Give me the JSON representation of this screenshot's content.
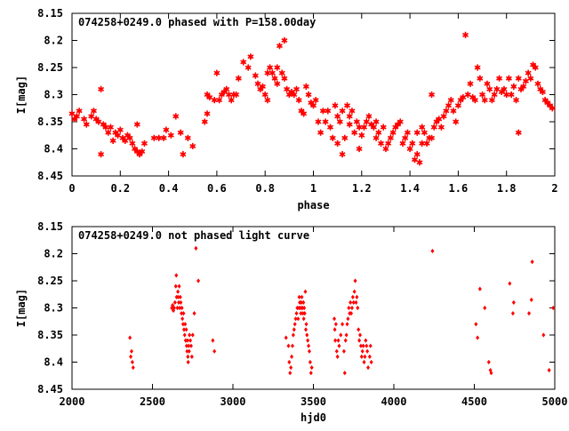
{
  "chart_data": [
    {
      "type": "scatter",
      "title": "074258+0249.0 phased with P=158.00day",
      "xlabel": "phase",
      "ylabel": "I[mag]",
      "xlim": [
        0,
        2
      ],
      "ylim": [
        8.45,
        8.15
      ],
      "y_inverted": true,
      "xticks": [
        "0",
        "0.2",
        "0.4",
        "0.6",
        "0.8",
        "1",
        "1.2",
        "1.4",
        "1.6",
        "1.8",
        "2"
      ],
      "yticks": [
        "8.15",
        "8.2",
        "8.25",
        "8.3",
        "8.35",
        "8.4",
        "8.45"
      ],
      "grid": false,
      "marker": "star",
      "color": "#ff0000",
      "points": [
        [
          0.0,
          8.335
        ],
        [
          0.01,
          8.345
        ],
        [
          0.02,
          8.34
        ],
        [
          0.03,
          8.33
        ],
        [
          0.05,
          8.345
        ],
        [
          0.06,
          8.355
        ],
        [
          0.08,
          8.34
        ],
        [
          0.09,
          8.33
        ],
        [
          0.1,
          8.345
        ],
        [
          0.11,
          8.35
        ],
        [
          0.12,
          8.29
        ],
        [
          0.13,
          8.355
        ],
        [
          0.12,
          8.41
        ],
        [
          0.14,
          8.36
        ],
        [
          0.15,
          8.37
        ],
        [
          0.16,
          8.36
        ],
        [
          0.17,
          8.385
        ],
        [
          0.18,
          8.37
        ],
        [
          0.19,
          8.375
        ],
        [
          0.2,
          8.365
        ],
        [
          0.21,
          8.38
        ],
        [
          0.22,
          8.385
        ],
        [
          0.23,
          8.375
        ],
        [
          0.24,
          8.38
        ],
        [
          0.25,
          8.39
        ],
        [
          0.26,
          8.4
        ],
        [
          0.27,
          8.405
        ],
        [
          0.27,
          8.355
        ],
        [
          0.28,
          8.41
        ],
        [
          0.29,
          8.405
        ],
        [
          0.3,
          8.39
        ],
        [
          0.34,
          8.38
        ],
        [
          0.36,
          8.38
        ],
        [
          0.38,
          8.38
        ],
        [
          0.39,
          8.365
        ],
        [
          0.41,
          8.375
        ],
        [
          0.43,
          8.34
        ],
        [
          0.45,
          8.37
        ],
        [
          0.46,
          8.41
        ],
        [
          0.48,
          8.38
        ],
        [
          0.5,
          8.395
        ],
        [
          0.55,
          8.35
        ],
        [
          0.56,
          8.335
        ],
        [
          0.56,
          8.3
        ],
        [
          0.57,
          8.305
        ],
        [
          0.59,
          8.31
        ],
        [
          0.6,
          8.26
        ],
        [
          0.61,
          8.31
        ],
        [
          0.62,
          8.3
        ],
        [
          0.63,
          8.295
        ],
        [
          0.64,
          8.29
        ],
        [
          0.65,
          8.3
        ],
        [
          0.66,
          8.31
        ],
        [
          0.67,
          8.3
        ],
        [
          0.68,
          8.3
        ],
        [
          0.69,
          8.27
        ],
        [
          0.71,
          8.24
        ],
        [
          0.73,
          8.25
        ],
        [
          0.74,
          8.23
        ],
        [
          0.76,
          8.265
        ],
        [
          0.77,
          8.28
        ],
        [
          0.78,
          8.29
        ],
        [
          0.79,
          8.285
        ],
        [
          0.8,
          8.3
        ],
        [
          0.81,
          8.31
        ],
        [
          0.81,
          8.26
        ],
        [
          0.82,
          8.25
        ],
        [
          0.83,
          8.26
        ],
        [
          0.84,
          8.27
        ],
        [
          0.85,
          8.28
        ],
        [
          0.85,
          8.25
        ],
        [
          0.86,
          8.21
        ],
        [
          0.87,
          8.26
        ],
        [
          0.88,
          8.27
        ],
        [
          0.88,
          8.2
        ],
        [
          0.89,
          8.29
        ],
        [
          0.9,
          8.3
        ],
        [
          0.91,
          8.295
        ],
        [
          0.92,
          8.3
        ],
        [
          0.93,
          8.29
        ],
        [
          0.94,
          8.31
        ],
        [
          0.95,
          8.33
        ],
        [
          0.96,
          8.335
        ],
        [
          0.97,
          8.285
        ],
        [
          0.98,
          8.3
        ],
        [
          0.99,
          8.315
        ],
        [
          1.0,
          8.32
        ],
        [
          1.01,
          8.31
        ],
        [
          1.02,
          8.35
        ],
        [
          1.03,
          8.37
        ],
        [
          1.04,
          8.33
        ],
        [
          1.05,
          8.35
        ],
        [
          1.06,
          8.33
        ],
        [
          1.07,
          8.36
        ],
        [
          1.08,
          8.38
        ],
        [
          1.09,
          8.32
        ],
        [
          1.1,
          8.34
        ],
        [
          1.1,
          8.39
        ],
        [
          1.11,
          8.35
        ],
        [
          1.12,
          8.33
        ],
        [
          1.12,
          8.41
        ],
        [
          1.13,
          8.38
        ],
        [
          1.14,
          8.32
        ],
        [
          1.15,
          8.355
        ],
        [
          1.15,
          8.34
        ],
        [
          1.16,
          8.33
        ],
        [
          1.17,
          8.37
        ],
        [
          1.18,
          8.35
        ],
        [
          1.19,
          8.36
        ],
        [
          1.19,
          8.4
        ],
        [
          1.2,
          8.375
        ],
        [
          1.21,
          8.36
        ],
        [
          1.22,
          8.35
        ],
        [
          1.23,
          8.34
        ],
        [
          1.24,
          8.355
        ],
        [
          1.25,
          8.36
        ],
        [
          1.26,
          8.38
        ],
        [
          1.26,
          8.35
        ],
        [
          1.27,
          8.37
        ],
        [
          1.28,
          8.39
        ],
        [
          1.29,
          8.36
        ],
        [
          1.3,
          8.4
        ],
        [
          1.31,
          8.39
        ],
        [
          1.32,
          8.38
        ],
        [
          1.33,
          8.37
        ],
        [
          1.34,
          8.36
        ],
        [
          1.35,
          8.355
        ],
        [
          1.36,
          8.35
        ],
        [
          1.37,
          8.39
        ],
        [
          1.38,
          8.38
        ],
        [
          1.39,
          8.37
        ],
        [
          1.4,
          8.4
        ],
        [
          1.41,
          8.39
        ],
        [
          1.42,
          8.42
        ],
        [
          1.43,
          8.37
        ],
        [
          1.43,
          8.41
        ],
        [
          1.44,
          8.425
        ],
        [
          1.45,
          8.36
        ],
        [
          1.45,
          8.39
        ],
        [
          1.46,
          8.37
        ],
        [
          1.47,
          8.39
        ],
        [
          1.48,
          8.38
        ],
        [
          1.49,
          8.38
        ],
        [
          1.49,
          8.3
        ],
        [
          1.5,
          8.36
        ],
        [
          1.51,
          8.35
        ],
        [
          1.52,
          8.345
        ],
        [
          1.53,
          8.36
        ],
        [
          1.54,
          8.34
        ],
        [
          1.55,
          8.33
        ],
        [
          1.56,
          8.32
        ],
        [
          1.57,
          8.31
        ],
        [
          1.58,
          8.33
        ],
        [
          1.59,
          8.35
        ],
        [
          1.6,
          8.32
        ],
        [
          1.61,
          8.31
        ],
        [
          1.62,
          8.305
        ],
        [
          1.63,
          8.19
        ],
        [
          1.64,
          8.3
        ],
        [
          1.65,
          8.28
        ],
        [
          1.66,
          8.305
        ],
        [
          1.67,
          8.31
        ],
        [
          1.68,
          8.25
        ],
        [
          1.69,
          8.27
        ],
        [
          1.7,
          8.3
        ],
        [
          1.71,
          8.31
        ],
        [
          1.72,
          8.28
        ],
        [
          1.73,
          8.29
        ],
        [
          1.74,
          8.31
        ],
        [
          1.75,
          8.3
        ],
        [
          1.76,
          8.29
        ],
        [
          1.77,
          8.27
        ],
        [
          1.78,
          8.295
        ],
        [
          1.79,
          8.29
        ],
        [
          1.8,
          8.3
        ],
        [
          1.81,
          8.27
        ],
        [
          1.82,
          8.3
        ],
        [
          1.83,
          8.285
        ],
        [
          1.84,
          8.31
        ],
        [
          1.85,
          8.27
        ],
        [
          1.85,
          8.37
        ],
        [
          1.86,
          8.29
        ],
        [
          1.87,
          8.285
        ],
        [
          1.88,
          8.275
        ],
        [
          1.89,
          8.26
        ],
        [
          1.9,
          8.27
        ],
        [
          1.91,
          8.245
        ],
        [
          1.92,
          8.25
        ],
        [
          1.93,
          8.28
        ],
        [
          1.94,
          8.29
        ],
        [
          1.95,
          8.295
        ],
        [
          1.96,
          8.31
        ],
        [
          1.97,
          8.315
        ],
        [
          1.98,
          8.32
        ],
        [
          1.99,
          8.325
        ]
      ]
    },
    {
      "type": "scatter",
      "title": "074258+0249.0 not phased light curve",
      "xlabel": "hjd0",
      "ylabel": "I[mag]",
      "xlim": [
        2000,
        5000
      ],
      "ylim": [
        8.45,
        8.15
      ],
      "y_inverted": true,
      "xticks": [
        "2000",
        "2500",
        "3000",
        "3500",
        "4000",
        "4500",
        "5000"
      ],
      "yticks": [
        "8.15",
        "8.2",
        "8.25",
        "8.3",
        "8.35",
        "8.4",
        "8.45"
      ],
      "grid": false,
      "marker": "diamond",
      "color": "#ff0000",
      "points": [
        [
          2360,
          8.355
        ],
        [
          2365,
          8.39
        ],
        [
          2370,
          8.38
        ],
        [
          2375,
          8.4
        ],
        [
          2380,
          8.41
        ],
        [
          2620,
          8.3
        ],
        [
          2625,
          8.295
        ],
        [
          2630,
          8.305
        ],
        [
          2635,
          8.3
        ],
        [
          2640,
          8.29
        ],
        [
          2645,
          8.26
        ],
        [
          2648,
          8.24
        ],
        [
          2650,
          8.28
        ],
        [
          2655,
          8.3
        ],
        [
          2658,
          8.27
        ],
        [
          2660,
          8.28
        ],
        [
          2663,
          8.29
        ],
        [
          2666,
          8.26
        ],
        [
          2670,
          8.3
        ],
        [
          2673,
          8.28
        ],
        [
          2676,
          8.29
        ],
        [
          2680,
          8.31
        ],
        [
          2683,
          8.3
        ],
        [
          2686,
          8.32
        ],
        [
          2690,
          8.33
        ],
        [
          2693,
          8.31
        ],
        [
          2696,
          8.34
        ],
        [
          2700,
          8.35
        ],
        [
          2703,
          8.33
        ],
        [
          2706,
          8.36
        ],
        [
          2710,
          8.34
        ],
        [
          2712,
          8.37
        ],
        [
          2715,
          8.38
        ],
        [
          2718,
          8.36
        ],
        [
          2720,
          8.39
        ],
        [
          2722,
          8.4
        ],
        [
          2725,
          8.37
        ],
        [
          2728,
          8.38
        ],
        [
          2730,
          8.35
        ],
        [
          2735,
          8.36
        ],
        [
          2740,
          8.37
        ],
        [
          2745,
          8.39
        ],
        [
          2750,
          8.35
        ],
        [
          2760,
          8.31
        ],
        [
          2770,
          8.19
        ],
        [
          2785,
          8.25
        ],
        [
          2875,
          8.36
        ],
        [
          2885,
          8.38
        ],
        [
          3330,
          8.355
        ],
        [
          3345,
          8.37
        ],
        [
          3350,
          8.4
        ],
        [
          3355,
          8.42
        ],
        [
          3360,
          8.41
        ],
        [
          3365,
          8.39
        ],
        [
          3370,
          8.37
        ],
        [
          3375,
          8.35
        ],
        [
          3380,
          8.34
        ],
        [
          3385,
          8.33
        ],
        [
          3390,
          8.32
        ],
        [
          3395,
          8.31
        ],
        [
          3400,
          8.3
        ],
        [
          3405,
          8.32
        ],
        [
          3410,
          8.3
        ],
        [
          3412,
          8.28
        ],
        [
          3415,
          8.29
        ],
        [
          3420,
          8.3
        ],
        [
          3422,
          8.31
        ],
        [
          3425,
          8.29
        ],
        [
          3428,
          8.28
        ],
        [
          3430,
          8.3
        ],
        [
          3432,
          8.3
        ],
        [
          3435,
          8.31
        ],
        [
          3438,
          8.29
        ],
        [
          3440,
          8.32
        ],
        [
          3443,
          8.3
        ],
        [
          3446,
          8.31
        ],
        [
          3450,
          8.27
        ],
        [
          3453,
          8.34
        ],
        [
          3456,
          8.33
        ],
        [
          3460,
          8.35
        ],
        [
          3465,
          8.36
        ],
        [
          3470,
          8.37
        ],
        [
          3475,
          8.38
        ],
        [
          3480,
          8.4
        ],
        [
          3485,
          8.42
        ],
        [
          3490,
          8.41
        ],
        [
          3630,
          8.32
        ],
        [
          3633,
          8.34
        ],
        [
          3636,
          8.36
        ],
        [
          3640,
          8.33
        ],
        [
          3645,
          8.38
        ],
        [
          3650,
          8.39
        ],
        [
          3655,
          8.36
        ],
        [
          3660,
          8.37
        ],
        [
          3670,
          8.35
        ],
        [
          3680,
          8.33
        ],
        [
          3690,
          8.38
        ],
        [
          3695,
          8.42
        ],
        [
          3700,
          8.36
        ],
        [
          3705,
          8.35
        ],
        [
          3710,
          8.33
        ],
        [
          3715,
          8.32
        ],
        [
          3720,
          8.3
        ],
        [
          3725,
          8.31
        ],
        [
          3730,
          8.29
        ],
        [
          3735,
          8.31
        ],
        [
          3740,
          8.3
        ],
        [
          3745,
          8.28
        ],
        [
          3750,
          8.29
        ],
        [
          3755,
          8.27
        ],
        [
          3760,
          8.25
        ],
        [
          3765,
          8.29
        ],
        [
          3770,
          8.28
        ],
        [
          3775,
          8.3
        ],
        [
          3780,
          8.34
        ],
        [
          3785,
          8.36
        ],
        [
          3790,
          8.35
        ],
        [
          3795,
          8.37
        ],
        [
          3800,
          8.39
        ],
        [
          3805,
          8.38
        ],
        [
          3810,
          8.37
        ],
        [
          3815,
          8.4
        ],
        [
          3820,
          8.39
        ],
        [
          3825,
          8.36
        ],
        [
          3830,
          8.37
        ],
        [
          3835,
          8.38
        ],
        [
          3840,
          8.41
        ],
        [
          3850,
          8.39
        ],
        [
          3855,
          8.37
        ],
        [
          3860,
          8.4
        ],
        [
          4240,
          8.195
        ],
        [
          4510,
          8.33
        ],
        [
          4520,
          8.355
        ],
        [
          4535,
          8.265
        ],
        [
          4565,
          8.3
        ],
        [
          4590,
          8.4
        ],
        [
          4600,
          8.415
        ],
        [
          4605,
          8.42
        ],
        [
          4720,
          8.255
        ],
        [
          4740,
          8.31
        ],
        [
          4745,
          8.29
        ],
        [
          4840,
          8.31
        ],
        [
          4855,
          8.285
        ],
        [
          4860,
          8.215
        ],
        [
          4930,
          8.35
        ],
        [
          4965,
          8.415
        ],
        [
          4990,
          8.3
        ]
      ]
    }
  ]
}
